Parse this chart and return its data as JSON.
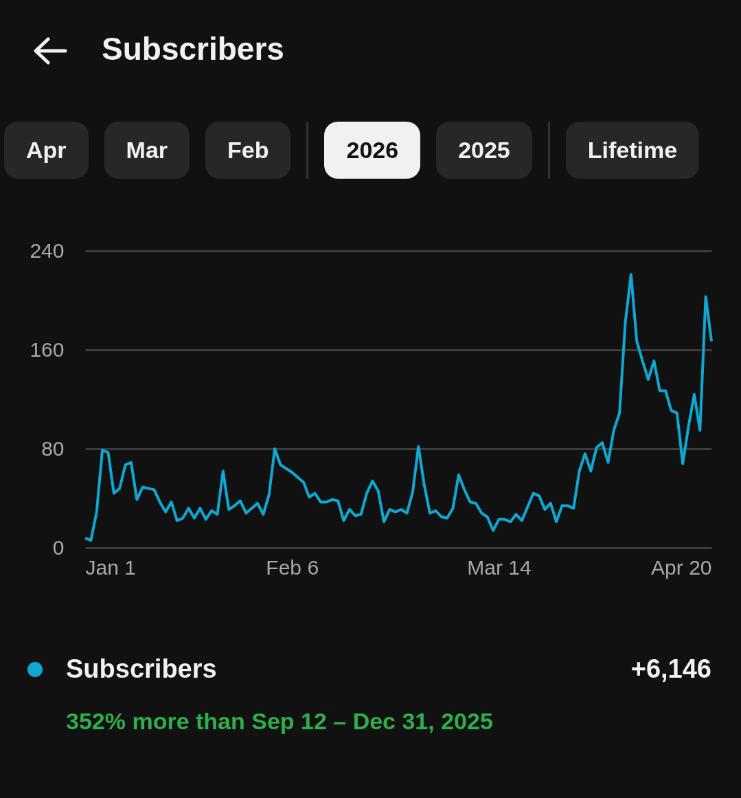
{
  "chart_data": {
    "type": "line",
    "title": "Subscribers",
    "annotations": [
      "Apr",
      "Mar",
      "Feb",
      "2026",
      "2025",
      "Lifetime",
      "+6,146",
      "352% more than Sep 12 – Dec 31, 2025"
    ],
    "x": [
      "2026-01-01",
      "2026-01-02",
      "2026-01-03",
      "2026-01-04",
      "2026-01-05",
      "2026-01-06",
      "2026-01-07",
      "2026-01-08",
      "2026-01-09",
      "2026-01-10",
      "2026-01-11",
      "2026-01-12",
      "2026-01-13",
      "2026-01-14",
      "2026-01-15",
      "2026-01-16",
      "2026-01-17",
      "2026-01-18",
      "2026-01-19",
      "2026-01-20",
      "2026-01-21",
      "2026-01-22",
      "2026-01-23",
      "2026-01-24",
      "2026-01-25",
      "2026-01-26",
      "2026-01-27",
      "2026-01-28",
      "2026-01-29",
      "2026-01-30",
      "2026-01-31",
      "2026-02-01",
      "2026-02-02",
      "2026-02-03",
      "2026-02-04",
      "2026-02-05",
      "2026-02-06",
      "2026-02-07",
      "2026-02-08",
      "2026-02-09",
      "2026-02-10",
      "2026-02-11",
      "2026-02-12",
      "2026-02-13",
      "2026-02-14",
      "2026-02-15",
      "2026-02-16",
      "2026-02-17",
      "2026-02-18",
      "2026-02-19",
      "2026-02-20",
      "2026-02-21",
      "2026-02-22",
      "2026-02-23",
      "2026-02-24",
      "2026-02-25",
      "2026-02-26",
      "2026-02-27",
      "2026-02-28",
      "2026-03-01",
      "2026-03-02",
      "2026-03-03",
      "2026-03-04",
      "2026-03-05",
      "2026-03-06",
      "2026-03-07",
      "2026-03-08",
      "2026-03-09",
      "2026-03-10",
      "2026-03-11",
      "2026-03-12",
      "2026-03-13",
      "2026-03-14",
      "2026-03-15",
      "2026-03-16",
      "2026-03-17",
      "2026-03-18",
      "2026-03-19",
      "2026-03-20",
      "2026-03-21",
      "2026-03-22",
      "2026-03-23",
      "2026-03-24",
      "2026-03-25",
      "2026-03-26",
      "2026-03-27",
      "2026-03-28",
      "2026-03-29",
      "2026-03-30",
      "2026-03-31",
      "2026-04-01",
      "2026-04-02",
      "2026-04-03",
      "2026-04-04",
      "2026-04-05",
      "2026-04-06",
      "2026-04-07",
      "2026-04-08",
      "2026-04-09",
      "2026-04-10",
      "2026-04-11",
      "2026-04-12",
      "2026-04-13",
      "2026-04-14",
      "2026-04-15",
      "2026-04-16",
      "2026-04-17",
      "2026-04-18",
      "2026-04-19",
      "2026-04-20"
    ],
    "series": [
      {
        "name": "Subscribers",
        "color": "#0fa8d2",
        "values": [
          8,
          6,
          29,
          79,
          77,
          44,
          48,
          67,
          69,
          39,
          49,
          48,
          47,
          37,
          29,
          37,
          22,
          24,
          32,
          24,
          32,
          23,
          30,
          27,
          62,
          31,
          34,
          38,
          28,
          32,
          36,
          27,
          43,
          80,
          67,
          64,
          61,
          57,
          53,
          41,
          44,
          37,
          37,
          39,
          38,
          22,
          31,
          26,
          27,
          44,
          54,
          46,
          21,
          31,
          29,
          31,
          28,
          45,
          82,
          51,
          28,
          30,
          25,
          24,
          32,
          59,
          47,
          37,
          36,
          28,
          25,
          14,
          23,
          23,
          21,
          27,
          22,
          33,
          44,
          42,
          31,
          36,
          21,
          34,
          34,
          32,
          62,
          76,
          62,
          81,
          85,
          69,
          95,
          109,
          182,
          221,
          167,
          151,
          136,
          151,
          127,
          127,
          111,
          109,
          68,
          98,
          124,
          95,
          203,
          167
        ]
      }
    ],
    "xlim": [
      "2026-01-01",
      "2026-04-20"
    ],
    "xticks": [
      {
        "value": "2026-01-01",
        "label": "Jan 1"
      },
      {
        "value": "2026-02-06",
        "label": "Feb 6"
      },
      {
        "value": "2026-03-14",
        "label": "Mar 14"
      },
      {
        "value": "2026-04-20",
        "label": "Apr 20"
      }
    ],
    "ylim": [
      0,
      240
    ],
    "yticks": [
      0,
      80,
      160,
      240
    ],
    "grid": "y",
    "legend": "bottom",
    "marker": "none",
    "line_style": "solid"
  }
}
